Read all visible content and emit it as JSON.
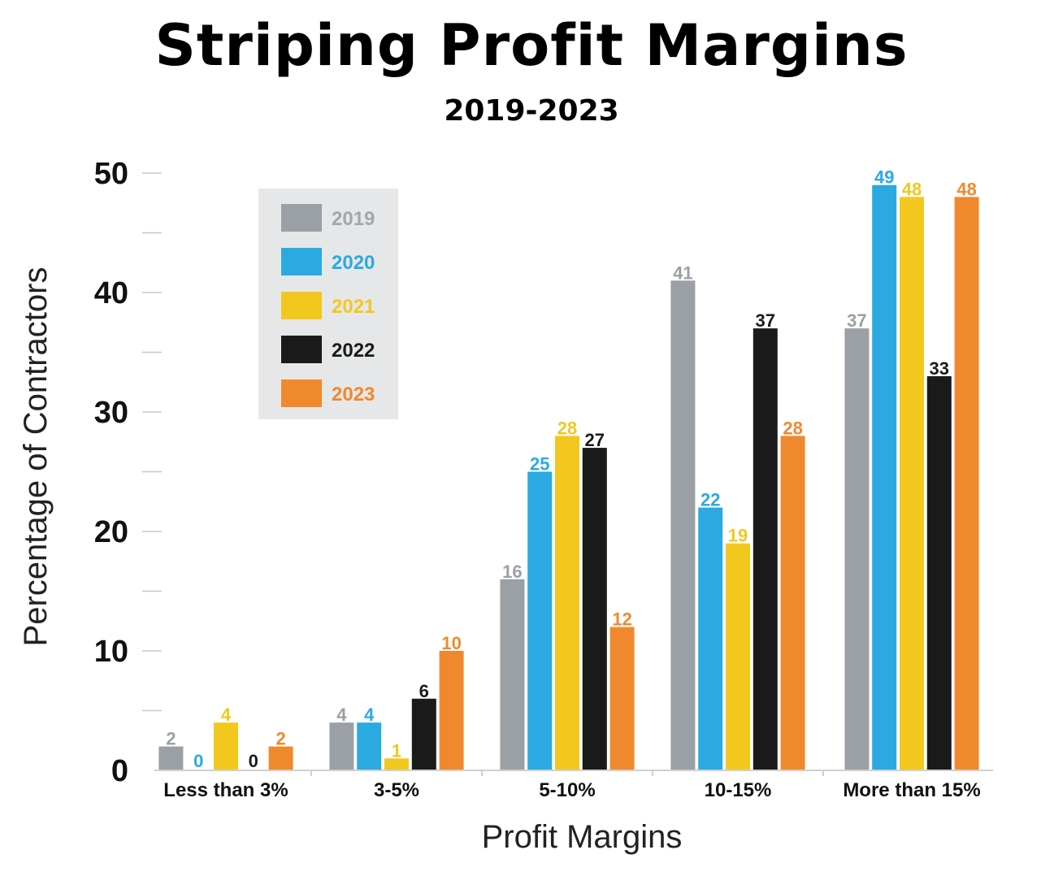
{
  "chart_data": {
    "type": "bar",
    "title": "Striping Profit Margins",
    "subtitle": "2019-2023",
    "xlabel": "Profit Margins",
    "ylabel": "Percentage of Contractors",
    "ylim": [
      0,
      50
    ],
    "yticks": [
      0,
      10,
      20,
      30,
      40,
      50
    ],
    "grid": false,
    "legend": "top-left",
    "categories": [
      "Less than 3%",
      "3-5%",
      "5-10%",
      "10-15%",
      "More than 15%"
    ],
    "series": [
      {
        "name": "2019",
        "color": "#9aa0a6",
        "values": [
          2,
          4,
          16,
          41,
          37
        ]
      },
      {
        "name": "2020",
        "color": "#2aaae1",
        "values": [
          0,
          4,
          25,
          22,
          49
        ]
      },
      {
        "name": "2021",
        "color": "#f2c81e",
        "values": [
          4,
          1,
          28,
          19,
          48
        ]
      },
      {
        "name": "2022",
        "color": "#1a1a1a",
        "values": [
          0,
          6,
          27,
          37,
          33
        ]
      },
      {
        "name": "2023",
        "color": "#f0892d",
        "values": [
          2,
          10,
          12,
          28,
          48
        ]
      }
    ]
  }
}
